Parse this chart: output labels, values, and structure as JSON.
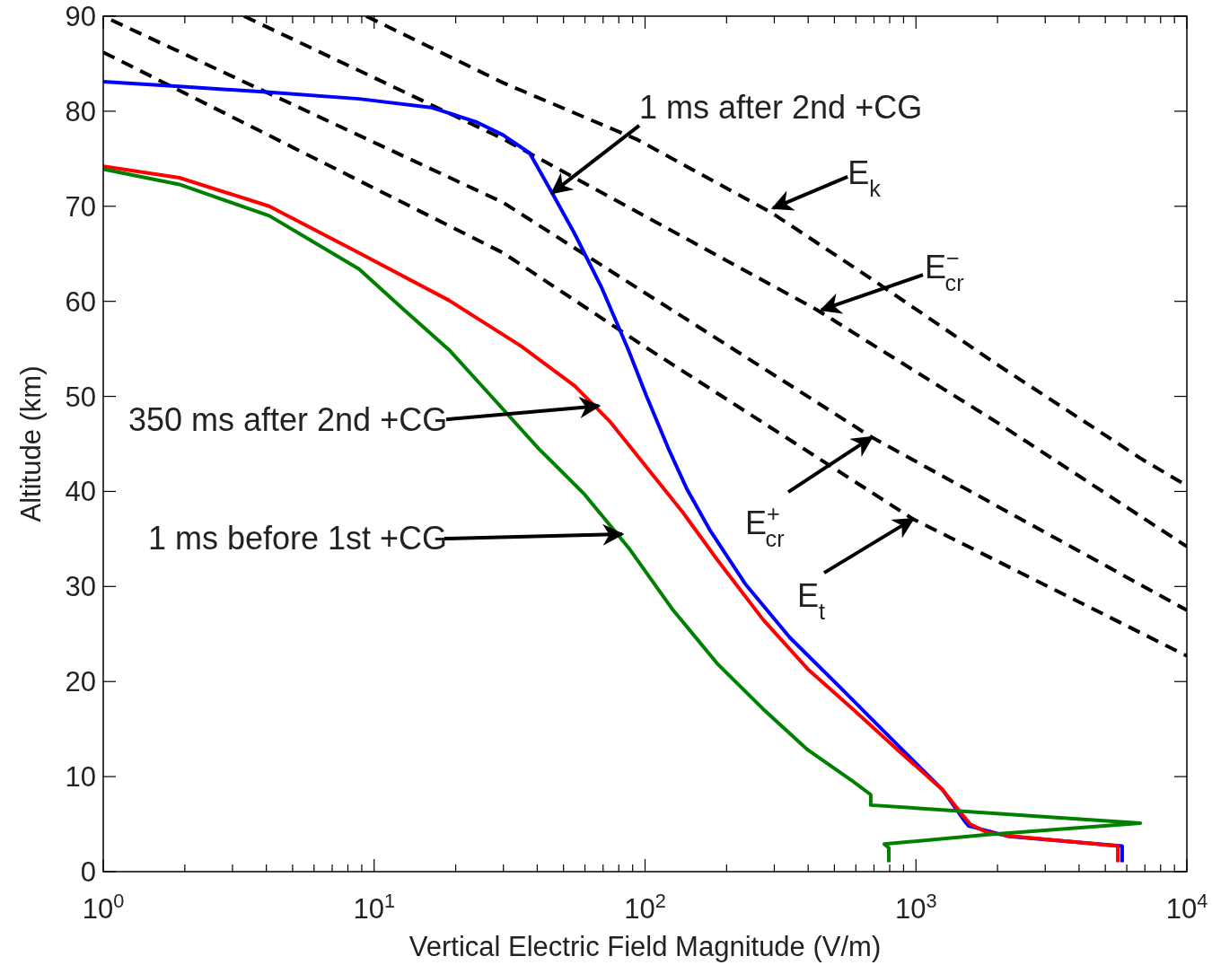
{
  "chart_data": {
    "type": "line",
    "xlabel": "Vertical Electric Field Magnitude (V/m)",
    "ylabel": "Altitude (km)",
    "log": "x",
    "xlim": [
      1,
      10000
    ],
    "ylim": [
      0,
      90
    ],
    "xticks": [
      {
        "value": 1,
        "label": "10$^{0}$"
      },
      {
        "value": 2,
        "label": null
      },
      {
        "value": 3,
        "label": null
      },
      {
        "value": 4,
        "label": null
      },
      {
        "value": 5,
        "label": null
      },
      {
        "value": 6,
        "label": null
      },
      {
        "value": 7,
        "label": null
      },
      {
        "value": 8,
        "label": null
      },
      {
        "value": 9,
        "label": null
      },
      {
        "value": 10,
        "label": "10$^{1}$"
      },
      {
        "value": 20,
        "label": null
      },
      {
        "value": 30,
        "label": null
      },
      {
        "value": 40,
        "label": null
      },
      {
        "value": 50,
        "label": null
      },
      {
        "value": 60,
        "label": null
      },
      {
        "value": 70,
        "label": null
      },
      {
        "value": 80,
        "label": null
      },
      {
        "value": 90,
        "label": null
      },
      {
        "value": 100,
        "label": "10$^{2}$"
      },
      {
        "value": 200,
        "label": null
      },
      {
        "value": 300,
        "label": null
      },
      {
        "value": 400,
        "label": null
      },
      {
        "value": 500,
        "label": null
      },
      {
        "value": 600,
        "label": null
      },
      {
        "value": 700,
        "label": null
      },
      {
        "value": 800,
        "label": null
      },
      {
        "value": 900,
        "label": null
      },
      {
        "value": 1000,
        "label": "10$^{3}$"
      },
      {
        "value": 2000,
        "label": null
      },
      {
        "value": 3000,
        "label": null
      },
      {
        "value": 4000,
        "label": null
      },
      {
        "value": 5000,
        "label": null
      },
      {
        "value": 6000,
        "label": null
      },
      {
        "value": 7000,
        "label": null
      },
      {
        "value": 8000,
        "label": null
      },
      {
        "value": 9000,
        "label": null
      },
      {
        "value": 10000,
        "label": "10$^{4}$"
      }
    ],
    "yticks": [
      0,
      10,
      20,
      30,
      40,
      50,
      60,
      70,
      80,
      90
    ],
    "grid": false,
    "marker": "none",
    "series": [
      {
        "color": "#000000",
        "line_style": "dashed",
        "x": [
          9.35,
          29.9,
          93.8,
          294,
          681,
          1982,
          6730,
          10000
        ],
        "values": [
          90,
          83,
          77,
          69.3,
          62.4,
          53.4,
          43.5,
          40.6
        ]
      },
      {
        "color": "#000000",
        "line_style": "dashed",
        "x": [
          3.31,
          29.9,
          431,
          1982,
          10000
        ],
        "values": [
          90,
          77.1,
          59.1,
          47.3,
          34.2
        ]
      },
      {
        "color": "#000000",
        "line_style": "dashed",
        "x": [
          1.07,
          29.9,
          687,
          10000
        ],
        "values": [
          89.6,
          70.4,
          45.7,
          27.5
        ]
      },
      {
        "color": "#000000",
        "line_style": "dashed",
        "x": [
          1,
          29.9,
          98.9,
          975,
          10000
        ],
        "values": [
          86.2,
          65.1,
          55.3,
          37.1,
          22.7
        ]
      },
      {
        "color": "#0000ff",
        "line_style": "solid",
        "x": [
          1,
          1.91,
          4.1,
          8.8,
          16.2,
          23.7,
          29.9,
          37.5,
          45.4,
          55,
          69,
          86.8,
          101,
          122,
          143,
          173,
          234,
          343,
          542,
          857,
          1255,
          1514,
          1567,
          2208,
          5770,
          5770
        ],
        "values": [
          83.1,
          82.6,
          82,
          81.3,
          80.4,
          78.9,
          77.5,
          75.6,
          71.4,
          67.1,
          61.5,
          54.9,
          50.1,
          44.5,
          40.2,
          36,
          30.3,
          24.6,
          19,
          13.3,
          8.6,
          5.3,
          4.8,
          3.7,
          2.7,
          1
        ]
      },
      {
        "color": "#ff0000",
        "line_style": "solid",
        "x": [
          1,
          1.91,
          4.1,
          8.8,
          18.9,
          34.8,
          55,
          74.5,
          101,
          137,
          186,
          273,
          399,
          585,
          857,
          1255,
          1462,
          1585,
          1837,
          2312,
          5560,
          5560
        ],
        "values": [
          74.2,
          73,
          70,
          65.1,
          60.1,
          55.3,
          51.1,
          47.3,
          42.6,
          37.9,
          32.7,
          26.5,
          21.3,
          17.1,
          12.8,
          8.6,
          6.2,
          5,
          4.1,
          3.7,
          2.7,
          1
        ]
      },
      {
        "color": "#008000",
        "line_style": "solid",
        "x": [
          1,
          1.91,
          4.1,
          8.8,
          12.9,
          18.9,
          27.7,
          40.5,
          59.3,
          86.8,
          127,
          186,
          273,
          399,
          585,
          681,
          681,
          1255,
          6730,
          1837,
          764,
          794,
          794
        ],
        "values": [
          73.9,
          72.3,
          69,
          63.4,
          59.1,
          54.9,
          49.7,
          44.5,
          39.8,
          34.1,
          27.5,
          21.8,
          17.1,
          12.8,
          9.5,
          8.1,
          7,
          6.5,
          5.1,
          3.9,
          2.9,
          2.5,
          1
        ]
      }
    ],
    "annotations": [
      {
        "text": "1 ms after 2nd +CG",
        "x": 45.4,
        "y": 71.4
      },
      {
        "text": "E$_{k}$",
        "x": 297,
        "y": 69.8
      },
      {
        "text": "E$^{−}$$_{cr}$",
        "x": 448,
        "y": 59.1
      },
      {
        "text": "350 ms after 2nd +CG",
        "x": 67.5,
        "y": 49
      },
      {
        "text": "E$^{+}$$_{cr}$",
        "x": 687,
        "y": 45.7
      },
      {
        "text": "1 ms before 1st +CG",
        "x": 82.3,
        "y": 35.5
      },
      {
        "text": "E$_{t}$",
        "x": 975,
        "y": 37.1
      }
    ]
  }
}
